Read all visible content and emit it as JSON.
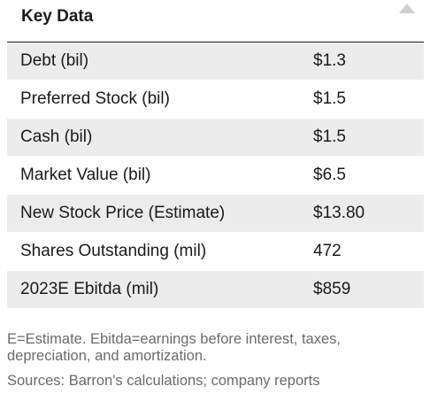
{
  "panel": {
    "title": "Key Data",
    "collapse_icon": "triangle-up-icon"
  },
  "rows": [
    {
      "label": "Debt (bil)",
      "value": "$1.3"
    },
    {
      "label": "Preferred Stock (bil)",
      "value": "$1.5"
    },
    {
      "label": "Cash (bil)",
      "value": "$1.5"
    },
    {
      "label": "Market Value (bil)",
      "value": "$6.5"
    },
    {
      "label": "New Stock Price (Estimate)",
      "value": "$13.80"
    },
    {
      "label": "Shares Outstanding (mil)",
      "value": "472"
    },
    {
      "label": "2023E Ebitda (mil)",
      "value": "$859"
    }
  ],
  "footnotes": {
    "definitions": "E=Estimate. Ebitda=earnings before interest, taxes, depreciation, and amortization.",
    "sources": "Sources: Barron's calculations; company reports"
  },
  "colors": {
    "shaded_row": "#ececec",
    "text": "#1a1a1a",
    "footnote": "#6b6b6b"
  }
}
